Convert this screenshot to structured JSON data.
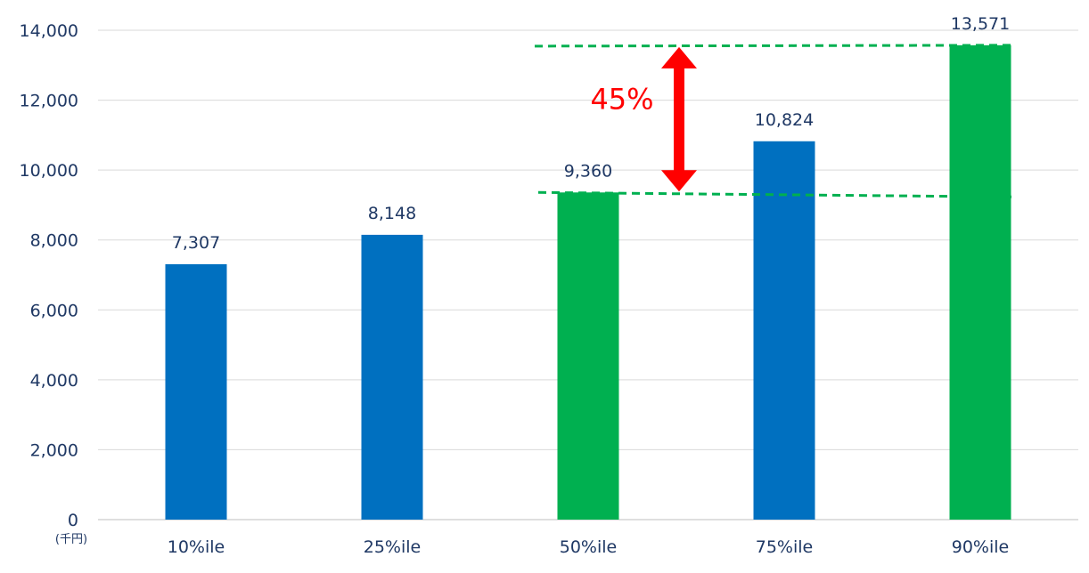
{
  "chart_data": {
    "type": "bar",
    "categories": [
      "10%ile",
      "25%ile",
      "50%ile",
      "75%ile",
      "90%ile"
    ],
    "values": [
      7307,
      8148,
      9360,
      10824,
      13571
    ],
    "value_labels": [
      "7,307",
      "8,148",
      "9,360",
      "10,824",
      "13,571"
    ],
    "bar_colors": [
      "#0070c0",
      "#0070c0",
      "#00b050",
      "#0070c0",
      "#00b050"
    ],
    "ylim": [
      0,
      14000
    ],
    "yticks": [
      0,
      2000,
      4000,
      6000,
      8000,
      10000,
      12000,
      14000
    ],
    "ytick_labels": [
      "0",
      "2,000",
      "4,000",
      "6,000",
      "8,000",
      "10,000",
      "12,000",
      "14,000"
    ],
    "unit_label": "(千円)",
    "grid": true,
    "annotation": {
      "text": "45%",
      "from_value": 9360,
      "to_value": 13571,
      "color": "#ff0000",
      "line_color": "#00b050"
    }
  }
}
